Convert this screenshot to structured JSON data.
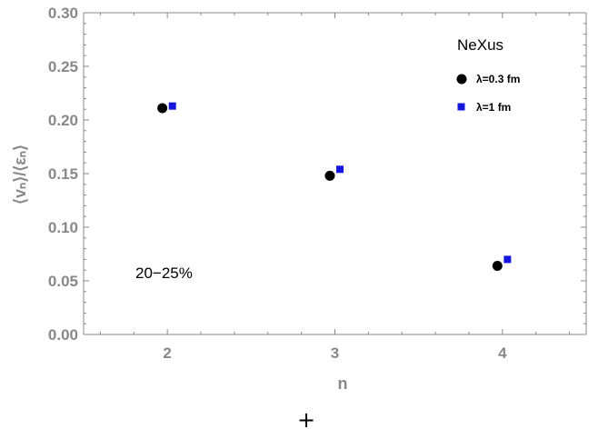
{
  "chart_data": {
    "type": "scatter",
    "xlabel": "n",
    "ylabel": "⟨vₙ⟩/⟨εₙ⟩",
    "xlim": [
      1.5,
      4.5
    ],
    "ylim": [
      0.0,
      0.3
    ],
    "x_ticks": [
      "2",
      "3",
      "4"
    ],
    "y_ticks": [
      "0.00",
      "0.05",
      "0.10",
      "0.15",
      "0.20",
      "0.25",
      "0.30"
    ],
    "grid": false,
    "legend": {
      "title": "NeXus",
      "position": "top-right",
      "entries": [
        "λ=0.3 fm",
        "λ=1 fm"
      ]
    },
    "annotation": "20−25%",
    "series": [
      {
        "name": "λ=0.3 fm",
        "marker": "circle",
        "color": "#000000",
        "x": [
          1.97,
          2.97,
          3.97
        ],
        "y": [
          0.211,
          0.148,
          0.064
        ]
      },
      {
        "name": "λ=1 fm",
        "marker": "square",
        "color": "#1515e0",
        "x": [
          2.03,
          3.03,
          4.03
        ],
        "y": [
          0.213,
          0.154,
          0.07
        ]
      }
    ]
  },
  "cursor_glyph": "+"
}
